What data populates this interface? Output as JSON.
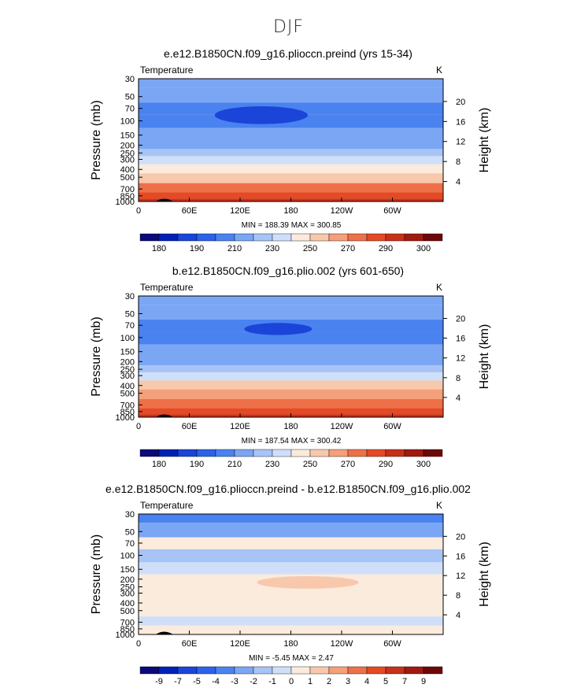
{
  "figure": {
    "title": "DJF"
  },
  "palette": {
    "abs": [
      "#0a0a7a",
      "#0022b4",
      "#1a45d8",
      "#2c62ea",
      "#4a82f0",
      "#7aa6f4",
      "#a8c4f6",
      "#cfdffa",
      "#fbebdc",
      "#f8c8ad",
      "#f4a07a",
      "#ee7048",
      "#e44a24",
      "#c8301a",
      "#a01a10",
      "#6e0808"
    ],
    "diff": [
      "#0a0a7a",
      "#0022b4",
      "#1a45d8",
      "#2c62ea",
      "#4a82f0",
      "#7aa6f4",
      "#a8c4f6",
      "#cfdffa",
      "#fbebdc",
      "#f8c8ad",
      "#f4a07a",
      "#ee7048",
      "#e44a24",
      "#c8301a",
      "#a01a10",
      "#6e0808"
    ]
  },
  "chart_data": [
    {
      "type": "heatmap",
      "title": "e.e12.B1850CN.f09_g16.plioccn.preind (yrs 15-34)",
      "variable": "Temperature",
      "units": "K",
      "ylabel": "Pressure  (mb)",
      "ylabel_right": "Height  (km)",
      "x_ticks": [
        "0",
        "60E",
        "120E",
        "180",
        "120W",
        "60W"
      ],
      "y_ticks": [
        "30",
        "50",
        "70",
        "100",
        "150",
        "200",
        "250",
        "300",
        "400",
        "500",
        "700",
        "850",
        "1000"
      ],
      "height_ticks": [
        "20",
        "16",
        "12",
        "8",
        "4"
      ],
      "stats": "MIN =  188.39   MAX =  300.85",
      "colorbar_labels": [
        "180",
        "190",
        "210",
        "230",
        "250",
        "270",
        "290",
        "300"
      ],
      "levels": [
        {
          "p": 30,
          "v": 210
        },
        {
          "p": 50,
          "v": 213
        },
        {
          "p": 70,
          "v": 204
        },
        {
          "p": 100,
          "v": 203
        },
        {
          "p": 150,
          "v": 210
        },
        {
          "p": 200,
          "v": 218
        },
        {
          "p": 250,
          "v": 226
        },
        {
          "p": 300,
          "v": 234
        },
        {
          "p": 400,
          "v": 248
        },
        {
          "p": 500,
          "v": 258
        },
        {
          "p": 700,
          "v": 272
        },
        {
          "p": 850,
          "v": 283
        },
        {
          "p": 1000,
          "v": 292
        }
      ],
      "anomalies": [
        {
          "lon": 145,
          "p": 85,
          "v": 188,
          "lon_w": 55,
          "p_span": 35
        }
      ]
    },
    {
      "type": "heatmap",
      "title": "b.e12.B1850CN.f09_g16.plio.002 (yrs 601-650)",
      "variable": "Temperature",
      "units": "K",
      "ylabel": "Pressure  (mb)",
      "ylabel_right": "Height  (km)",
      "x_ticks": [
        "0",
        "60E",
        "120E",
        "180",
        "120W",
        "60W"
      ],
      "y_ticks": [
        "30",
        "50",
        "70",
        "100",
        "150",
        "200",
        "250",
        "300",
        "400",
        "500",
        "700",
        "850",
        "1000"
      ],
      "height_ticks": [
        "20",
        "16",
        "12",
        "8",
        "4"
      ],
      "stats": "MIN =  187.54   MAX =  300.42",
      "colorbar_labels": [
        "180",
        "190",
        "210",
        "230",
        "250",
        "270",
        "290",
        "300"
      ],
      "levels": [
        {
          "p": 30,
          "v": 210
        },
        {
          "p": 50,
          "v": 212
        },
        {
          "p": 70,
          "v": 203
        },
        {
          "p": 100,
          "v": 202
        },
        {
          "p": 150,
          "v": 210
        },
        {
          "p": 200,
          "v": 219
        },
        {
          "p": 250,
          "v": 228
        },
        {
          "p": 300,
          "v": 236
        },
        {
          "p": 400,
          "v": 250
        },
        {
          "p": 500,
          "v": 260
        },
        {
          "p": 700,
          "v": 274
        },
        {
          "p": 850,
          "v": 285
        },
        {
          "p": 1000,
          "v": 294
        }
      ],
      "anomalies": [
        {
          "lon": 165,
          "p": 78,
          "v": 188,
          "lon_w": 40,
          "p_span": 20
        }
      ]
    },
    {
      "type": "heatmap",
      "title": "e.e12.B1850CN.f09_g16.plioccn.preind - b.e12.B1850CN.f09_g16.plio.002",
      "variable": "Temperature",
      "units": "K",
      "ylabel": "Pressure  (mb)",
      "ylabel_right": "Height  (km)",
      "x_ticks": [
        "0",
        "60E",
        "120E",
        "180",
        "120W",
        "60W"
      ],
      "y_ticks": [
        "30",
        "50",
        "70",
        "100",
        "150",
        "200",
        "250",
        "300",
        "400",
        "500",
        "700",
        "850",
        "1000"
      ],
      "height_ticks": [
        "20",
        "16",
        "12",
        "8",
        "4"
      ],
      "stats": "MIN =   -5.45   MAX =    2.47",
      "colorbar_labels": [
        "-9",
        "-7",
        "-5",
        "-4",
        "-3",
        "-2",
        "-1",
        "0",
        "1",
        "2",
        "3",
        "4",
        "5",
        "7",
        "9"
      ],
      "levels": [
        {
          "p": 30,
          "v": -4
        },
        {
          "p": 50,
          "v": -3
        },
        {
          "p": 70,
          "v": 0.5
        },
        {
          "p": 100,
          "v": -1.5
        },
        {
          "p": 150,
          "v": -0.5
        },
        {
          "p": 200,
          "v": 0.3
        },
        {
          "p": 250,
          "v": 0.3
        },
        {
          "p": 300,
          "v": 0.3
        },
        {
          "p": 400,
          "v": 0.2
        },
        {
          "p": 500,
          "v": 0.2
        },
        {
          "p": 700,
          "v": -0.5
        },
        {
          "p": 850,
          "v": 0.3
        },
        {
          "p": 1000,
          "v": 0.3
        }
      ],
      "anomalies": [
        {
          "lon": 200,
          "p": 220,
          "v": 1.5,
          "lon_w": 60,
          "p_span": 60
        }
      ]
    }
  ]
}
